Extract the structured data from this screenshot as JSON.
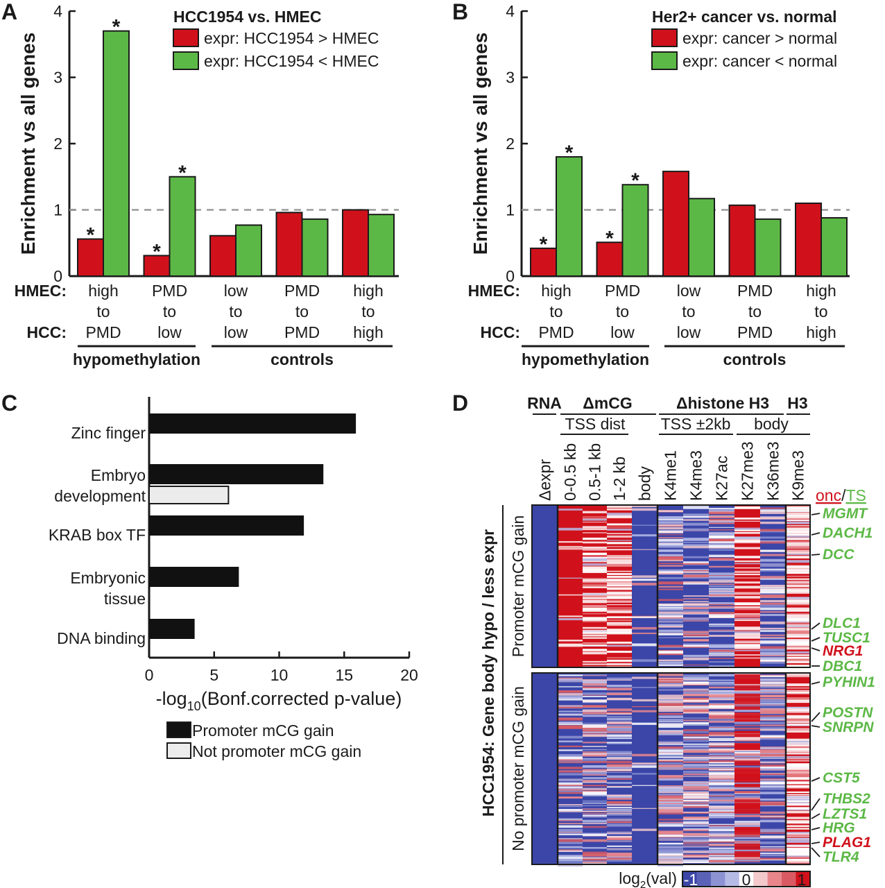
{
  "chart_data": [
    {
      "panel": "A",
      "type": "bar",
      "title": "HCC1954 vs. HMEC",
      "ylabel": "Enrichment vs all genes",
      "ylim": [
        0,
        4
      ],
      "yticks": [
        "0",
        "1",
        "2",
        "3",
        "4"
      ],
      "reference_line": 1,
      "row_labels": {
        "top": "HMEC:",
        "bottom": "HCC:"
      },
      "categories": [
        {
          "l1": "high",
          "l2": "to",
          "l3": "PMD"
        },
        {
          "l1": "PMD",
          "l2": "to",
          "l3": "low"
        },
        {
          "l1": "low",
          "l2": "to",
          "l3": "low"
        },
        {
          "l1": "PMD",
          "l2": "to",
          "l3": "PMD"
        },
        {
          "l1": "high",
          "l2": "to",
          "l3": "high"
        }
      ],
      "groups": [
        {
          "label": "hypomethylation",
          "from": 0,
          "to": 1
        },
        {
          "label": "controls",
          "from": 2,
          "to": 4
        }
      ],
      "series": [
        {
          "name": "expr: HCC1954 > HMEC",
          "color": "#d0111b",
          "values": [
            0.56,
            0.31,
            0.61,
            0.96,
            1.0
          ],
          "significant": [
            true,
            true,
            false,
            false,
            false
          ]
        },
        {
          "name": "expr: HCC1954 < HMEC",
          "color": "#5cb846",
          "values": [
            3.7,
            1.5,
            0.77,
            0.86,
            0.93
          ],
          "significant": [
            true,
            true,
            false,
            false,
            false
          ]
        }
      ],
      "sig_marker": "*"
    },
    {
      "panel": "B",
      "type": "bar",
      "title": "Her2+ cancer vs. normal",
      "ylabel": "Enrichment vs all genes",
      "ylim": [
        0,
        4
      ],
      "yticks": [
        "0",
        "1",
        "2",
        "3",
        "4"
      ],
      "reference_line": 1,
      "row_labels": {
        "top": "HMEC:",
        "bottom": "HCC:"
      },
      "categories": [
        {
          "l1": "high",
          "l2": "to",
          "l3": "PMD"
        },
        {
          "l1": "PMD",
          "l2": "to",
          "l3": "low"
        },
        {
          "l1": "low",
          "l2": "to",
          "l3": "low"
        },
        {
          "l1": "PMD",
          "l2": "to",
          "l3": "PMD"
        },
        {
          "l1": "high",
          "l2": "to",
          "l3": "high"
        }
      ],
      "groups": [
        {
          "label": "hypomethylation",
          "from": 0,
          "to": 1
        },
        {
          "label": "controls",
          "from": 2,
          "to": 4
        }
      ],
      "series": [
        {
          "name": "expr: cancer > normal",
          "color": "#d0111b",
          "values": [
            0.42,
            0.51,
            1.58,
            1.07,
            1.1
          ],
          "significant": [
            true,
            true,
            false,
            false,
            false
          ]
        },
        {
          "name": "expr: cancer < normal",
          "color": "#5cb846",
          "values": [
            1.8,
            1.38,
            1.17,
            0.86,
            0.88
          ],
          "significant": [
            true,
            true,
            false,
            false,
            false
          ]
        }
      ],
      "sig_marker": "*"
    },
    {
      "panel": "C",
      "type": "bar",
      "orientation": "horizontal",
      "xlabel_prefix": "-log",
      "xlabel_sub": "10",
      "xlabel_suffix": "(Bonf.corrected p-value)",
      "xlim": [
        0,
        20
      ],
      "xticks": [
        "0",
        "5",
        "10",
        "15",
        "20"
      ],
      "categories": [
        {
          "l1": "Zinc finger",
          "l2": ""
        },
        {
          "l1": "Embryo",
          "l2": "development"
        },
        {
          "l1": "KRAB box TF",
          "l2": ""
        },
        {
          "l1": "Embryonic",
          "l2": "tissue"
        },
        {
          "l1": "DNA binding",
          "l2": ""
        }
      ],
      "series": [
        {
          "name": "Promoter mCG gain",
          "color": "#111111",
          "values": [
            15.9,
            13.4,
            11.9,
            6.9,
            3.5
          ]
        },
        {
          "name": "Not promoter mCG gain",
          "color": "#ececec",
          "values": [
            0.0,
            6.1,
            0.0,
            0.0,
            0.0
          ]
        }
      ]
    },
    {
      "panel": "D",
      "type": "heatmap",
      "side_label": "HCC1954: Gene body hypo / less expr",
      "row_groups": [
        "Promoter mCG gain",
        "No promoter mCG gain"
      ],
      "header_groups": [
        {
          "label": "RNA"
        },
        {
          "label": "ΔmCG",
          "sub": "TSS dist"
        },
        {
          "label": "Δhistone H3",
          "sub1": "TSS ±2kb",
          "sub2": "body"
        },
        {
          "label": "H3"
        }
      ],
      "columns": [
        "Δexpr",
        "0-0.5 kb",
        "0.5-1 kb",
        "1-2 kb",
        "body",
        "K4me1",
        "K4me3",
        "K27ac",
        "K27me3",
        "K36me3",
        "K9me3"
      ],
      "legend_title": "onc",
      "legend_sep": "/",
      "legend_title2": "TS",
      "genes": [
        {
          "name": "MGMT",
          "class": "TS"
        },
        {
          "name": "DACH1",
          "class": "TS"
        },
        {
          "name": "DCC",
          "class": "TS"
        },
        {
          "name": "DLC1",
          "class": "TS"
        },
        {
          "name": "TUSC1",
          "class": "TS"
        },
        {
          "name": "NRG1",
          "class": "onc"
        },
        {
          "name": "DBC1",
          "class": "TS"
        },
        {
          "name": "PYHIN1",
          "class": "TS"
        },
        {
          "name": "POSTN",
          "class": "TS"
        },
        {
          "name": "SNRPN",
          "class": "TS"
        },
        {
          "name": "CST5",
          "class": "TS"
        },
        {
          "name": "THBS2",
          "class": "TS"
        },
        {
          "name": "LZTS1",
          "class": "TS"
        },
        {
          "name": "HRG",
          "class": "TS"
        },
        {
          "name": "PLAG1",
          "class": "onc"
        },
        {
          "name": "TLR4",
          "class": "TS"
        }
      ],
      "colorbar": {
        "label_prefix": "log",
        "label_sub": "2",
        "label_suffix": "(val)",
        "min": -1,
        "mid": 0,
        "max": 1,
        "min_label": "-1",
        "mid_label": "0",
        "max_label": "1"
      }
    }
  ],
  "panels": {
    "a": "A",
    "b": "B",
    "c": "C",
    "d": "D"
  },
  "colors": {
    "red": "#d0111b",
    "green": "#5cb846",
    "blue": "#3b46a8",
    "black": "#111111",
    "grey": "#ececec"
  }
}
